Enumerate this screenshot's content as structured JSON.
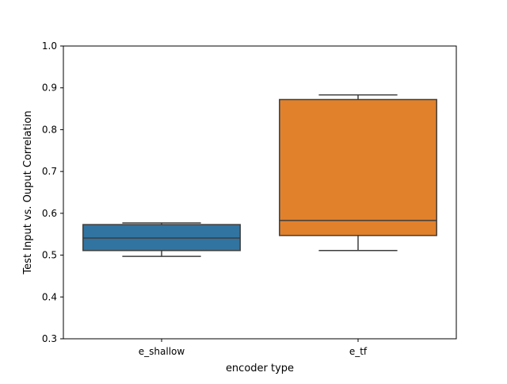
{
  "chart_data": {
    "type": "box",
    "title": "",
    "xlabel": "encoder type",
    "ylabel": "Test Input vs. Ouput Correlation",
    "ylim": [
      0.3,
      1.0
    ],
    "yticks": [
      0.3,
      0.4,
      0.5,
      0.6,
      0.7,
      0.8,
      0.9,
      1.0
    ],
    "ytick_labels": [
      "0.3",
      "0.4",
      "0.5",
      "0.6",
      "0.7",
      "0.8",
      "0.9",
      "1.0"
    ],
    "grid": false,
    "legend": "none",
    "categories": [
      "e_shallow",
      "e_tf"
    ],
    "series": [
      {
        "category": "e_shallow",
        "whisker_low": 0.497,
        "q1": 0.511,
        "median": 0.541,
        "q3": 0.573,
        "whisker_high": 0.577,
        "color": "#3274a1"
      },
      {
        "category": "e_tf",
        "whisker_low": 0.511,
        "q1": 0.547,
        "median": 0.583,
        "q3": 0.872,
        "whisker_high": 0.883,
        "color": "#e1812c"
      }
    ],
    "line_color": "#3d3d3d"
  }
}
